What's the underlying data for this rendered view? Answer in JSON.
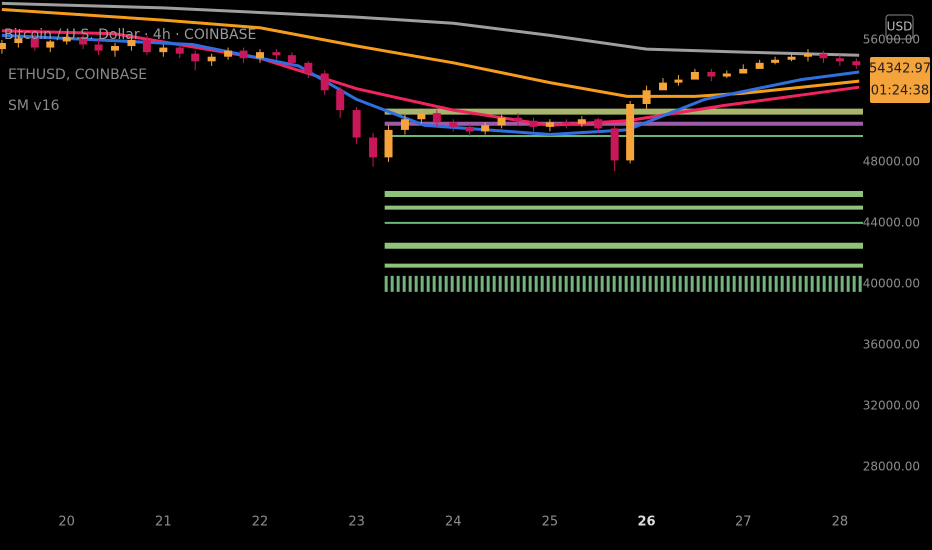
{
  "chart_data": {
    "type": "candlestick",
    "title": "Bitcoin / U.S. Dollar · 4h · COINBASE",
    "overlay_titles": [
      "ETHUSD, COINBASE",
      "SM v16"
    ],
    "currency": "USD",
    "last_price_label": "54342.97",
    "countdown": "01:24:38",
    "x": [
      19.33,
      19.5,
      19.67,
      19.83,
      20,
      20.17,
      20.33,
      20.5,
      20.67,
      20.83,
      21,
      21.17,
      21.33,
      21.5,
      21.67,
      21.83,
      22,
      22.17,
      22.33,
      22.5,
      22.67,
      22.83,
      23,
      23.17,
      23.33,
      23.5,
      23.67,
      23.83,
      24,
      24.17,
      24.33,
      24.5,
      24.67,
      24.83,
      25,
      25.17,
      25.33,
      25.5,
      25.67,
      25.83,
      26,
      26.17,
      26.33,
      26.5,
      26.67,
      26.83,
      27,
      27.17,
      27.33,
      27.5,
      27.67,
      27.83,
      28,
      28.17
    ],
    "open": [
      55400,
      55800,
      56100,
      55500,
      55900,
      56200,
      55700,
      55300,
      55600,
      56000,
      55200,
      55500,
      55100,
      54600,
      54900,
      55300,
      54800,
      55200,
      55000,
      54500,
      53800,
      52700,
      51400,
      49600,
      48300,
      50100,
      50800,
      51200,
      50600,
      50300,
      50000,
      50400,
      50900,
      50700,
      50300,
      50600,
      50500,
      50800,
      50200,
      48100,
      51800,
      52700,
      53200,
      53400,
      53900,
      53600,
      53800,
      54100,
      54500,
      54700,
      54900,
      55100,
      54800,
      54600
    ],
    "high": [
      56000,
      56300,
      56400,
      56000,
      56400,
      56500,
      56000,
      55800,
      56200,
      56300,
      55700,
      55700,
      55300,
      55100,
      55500,
      55500,
      55400,
      55400,
      55200,
      54600,
      54000,
      52900,
      51600,
      49900,
      50400,
      51100,
      51500,
      51400,
      50800,
      50500,
      50600,
      51100,
      51200,
      50900,
      50800,
      50800,
      51000,
      50900,
      50400,
      52000,
      53000,
      53500,
      53700,
      54100,
      54100,
      54000,
      54400,
      54700,
      54900,
      55100,
      55400,
      55300,
      55000,
      54800
    ],
    "low": [
      55100,
      55500,
      55300,
      55200,
      55700,
      55400,
      55000,
      54900,
      55300,
      55000,
      54900,
      54800,
      54000,
      54300,
      54700,
      54500,
      54500,
      54700,
      54200,
      53500,
      52400,
      50900,
      49200,
      47700,
      48000,
      49800,
      50500,
      50300,
      50000,
      49700,
      49800,
      50200,
      50400,
      50000,
      50000,
      50200,
      50300,
      49900,
      47400,
      47900,
      51500,
      52900,
      53000,
      53600,
      53300,
      53500,
      53800,
      54200,
      54400,
      54600,
      54600,
      54500,
      54300,
      54100
    ],
    "close": [
      55800,
      56100,
      55500,
      55900,
      56200,
      55700,
      55300,
      55600,
      56000,
      55200,
      55500,
      55100,
      54600,
      54900,
      55300,
      54800,
      55200,
      55000,
      54500,
      53800,
      52700,
      51400,
      49600,
      48300,
      50100,
      50800,
      51200,
      50600,
      50300,
      50000,
      50400,
      50900,
      50700,
      50300,
      50600,
      50500,
      50800,
      50200,
      48100,
      51800,
      52700,
      53200,
      53400,
      53900,
      53600,
      53800,
      54100,
      54500,
      54700,
      54900,
      55100,
      54800,
      54600,
      54342.97
    ],
    "up_color": "#f5a33b",
    "down_color": "#c8185a",
    "lines": [
      {
        "color": "#9e9e9e",
        "x": [
          19.33,
          21,
          23,
          24,
          25,
          26,
          27,
          28.2
        ],
        "values": [
          58400,
          58100,
          57500,
          57100,
          56300,
          55400,
          55200,
          55000
        ]
      },
      {
        "color": "#f59c1a",
        "x": [
          19.33,
          21,
          22,
          23,
          24,
          25,
          25.8,
          26.5,
          27,
          28.2
        ],
        "values": [
          58000,
          57300,
          56800,
          55600,
          54500,
          53200,
          52300,
          52300,
          52500,
          53300
        ]
      },
      {
        "color": "#f0245e",
        "x": [
          19.33,
          20.5,
          22,
          23,
          24,
          25,
          25.8,
          26.8,
          28.2
        ],
        "values": [
          56600,
          56400,
          54800,
          52800,
          51400,
          50400,
          50700,
          51700,
          52900
        ]
      },
      {
        "color": "#2f6fe0",
        "x": [
          19.33,
          21.3,
          22.4,
          23,
          23.7,
          25,
          25.8,
          26.6,
          27.6,
          28.2
        ],
        "values": [
          56300,
          55700,
          54300,
          52100,
          50400,
          49800,
          50100,
          52100,
          53400,
          53900
        ]
      }
    ],
    "levels_start": 23.29,
    "levels": [
      {
        "value": 51300,
        "color": "#a8b56a"
      },
      {
        "value": 50500,
        "color": "#9c5ca8"
      },
      {
        "value": 49700,
        "color": "#6bb77b"
      },
      {
        "value": 45900,
        "color": "#8fc27a"
      },
      {
        "value": 45000,
        "color": "#8fc27a"
      },
      {
        "value": 44000,
        "color": "#6bb77b"
      },
      {
        "value": 42500,
        "color": "#8fc27a"
      },
      {
        "value": 41200,
        "color": "#8fc27a"
      },
      {
        "value": 40000,
        "color": "#74b57e"
      }
    ],
    "xlim": [
      19.31,
      28.26
    ],
    "xticks": [
      20,
      21,
      22,
      23,
      24,
      25,
      26,
      27,
      28
    ],
    "ylim": [
      25500,
      58620
    ],
    "yticks": [
      {
        "value": 28000,
        "label": "28000.00"
      },
      {
        "value": 32000,
        "label": "32000.00"
      },
      {
        "value": 36000,
        "label": "36000.00"
      },
      {
        "value": 40000,
        "label": "40000.00"
      },
      {
        "value": 44000,
        "label": "44000.00"
      },
      {
        "value": 48000,
        "label": "48000.00"
      },
      {
        "value": 56000,
        "label": "56000.00"
      }
    ]
  }
}
